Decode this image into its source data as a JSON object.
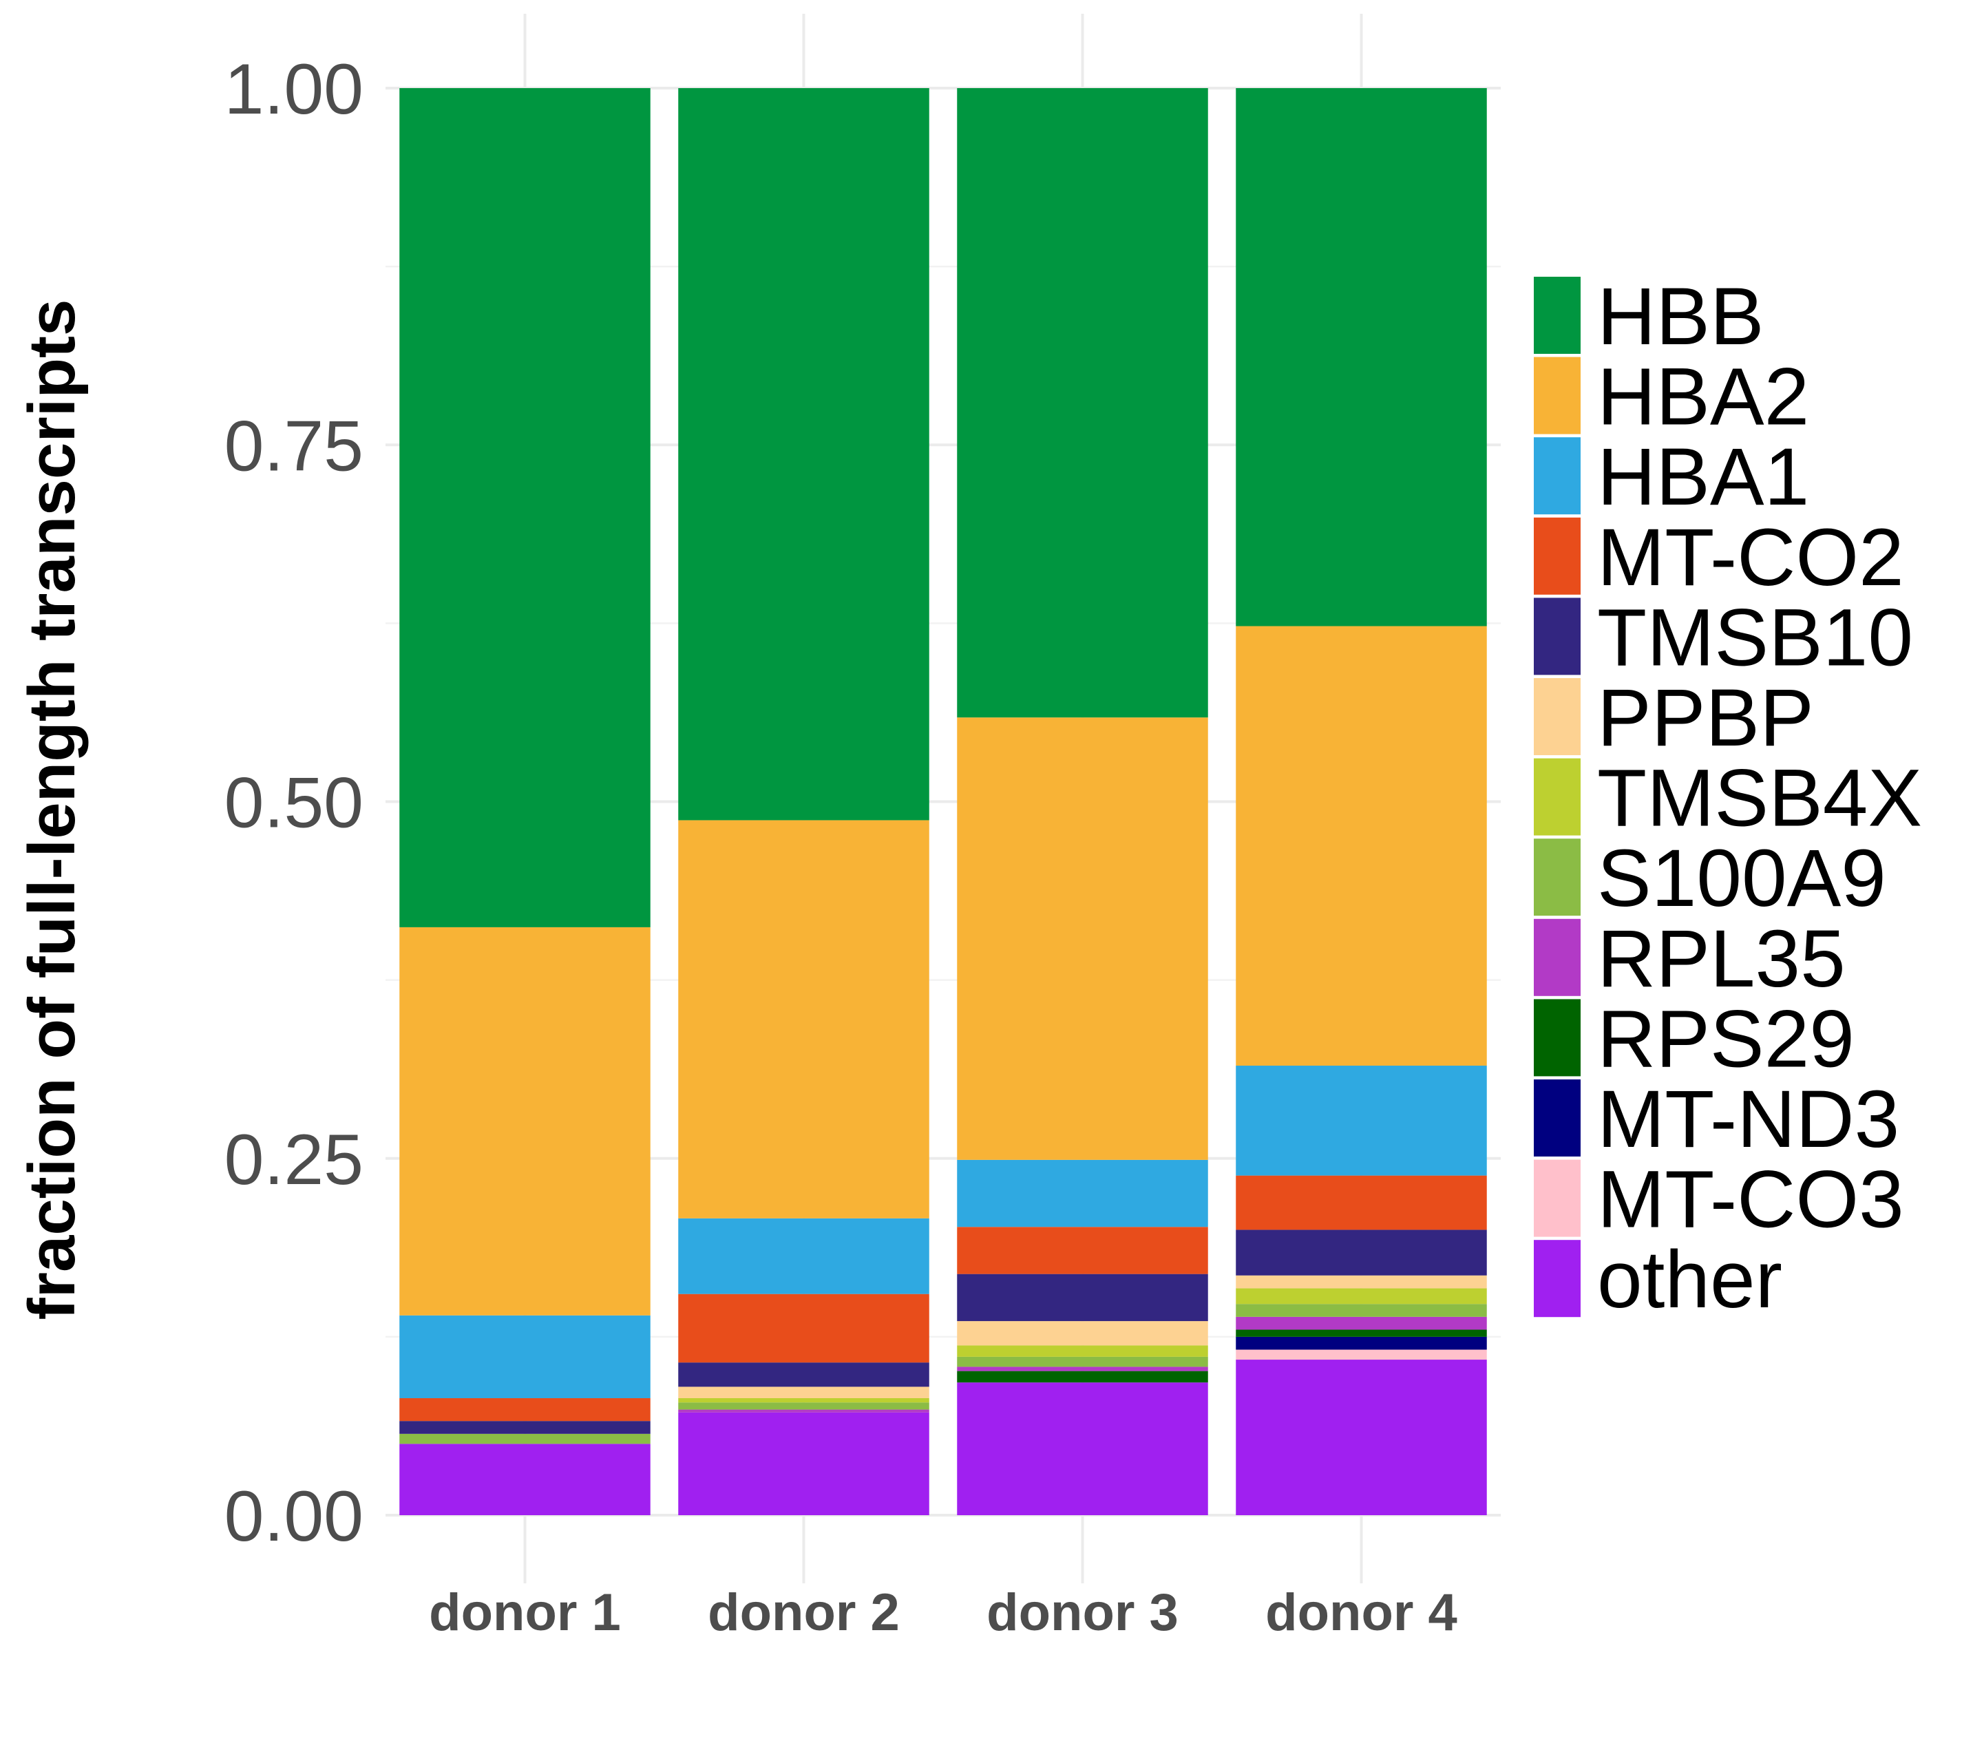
{
  "chart_data": {
    "type": "bar",
    "stacked": true,
    "title": "",
    "xlabel": "",
    "ylabel": "fraction of full-length transcripts",
    "ylim": [
      0,
      1
    ],
    "yticks": [
      "0.00",
      "0.25",
      "0.50",
      "0.75",
      "1.00"
    ],
    "categories": [
      "donor 1",
      "donor 2",
      "donor 3",
      "donor 4"
    ],
    "legend_position": "right",
    "grid": true,
    "series": [
      {
        "name": "other",
        "color": "#a020f0",
        "values": [
          0.05,
          0.072,
          0.093,
          0.109
        ]
      },
      {
        "name": "MT-CO3",
        "color": "#ffc0cb",
        "values": [
          0.0,
          0.0,
          0.0,
          0.007
        ]
      },
      {
        "name": "MT-ND3",
        "color": "#000080",
        "values": [
          0.0,
          0.0,
          0.0,
          0.009
        ]
      },
      {
        "name": "RPS29",
        "color": "#006400",
        "values": [
          0.0,
          0.0,
          0.008,
          0.005
        ]
      },
      {
        "name": "RPL35",
        "color": "#b23ac6",
        "values": [
          0.0,
          0.002,
          0.003,
          0.009
        ]
      },
      {
        "name": "S100A9",
        "color": "#8bbc45",
        "values": [
          0.007,
          0.005,
          0.007,
          0.009
        ]
      },
      {
        "name": "TMSB4X",
        "color": "#bdd030",
        "values": [
          0.0,
          0.003,
          0.008,
          0.011
        ]
      },
      {
        "name": "PPBP",
        "color": "#fdd292",
        "values": [
          0.0,
          0.008,
          0.017,
          0.009
        ]
      },
      {
        "name": "TMSB10",
        "color": "#332681",
        "values": [
          0.009,
          0.017,
          0.033,
          0.032
        ]
      },
      {
        "name": "MT-CO2",
        "color": "#e84d1b",
        "values": [
          0.016,
          0.048,
          0.033,
          0.038
        ]
      },
      {
        "name": "HBA1",
        "color": "#2fa9e1",
        "values": [
          0.058,
          0.053,
          0.047,
          0.077
        ]
      },
      {
        "name": "HBA2",
        "color": "#f8b336",
        "values": [
          0.272,
          0.279,
          0.31,
          0.308
        ]
      },
      {
        "name": "HBB",
        "color": "#009640",
        "values": [
          0.588,
          0.513,
          0.441,
          0.377
        ]
      }
    ]
  }
}
